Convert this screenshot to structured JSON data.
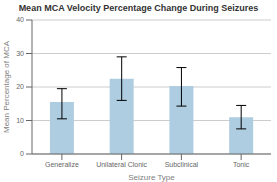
{
  "chart_data": {
    "type": "bar",
    "title": "Mean MCA Velocity Percentage Change During Seizures",
    "xlabel": "Seizure Type",
    "ylabel": "Mean Percentage of MCA",
    "categories": [
      "Generalize",
      "Unilateral Clonic",
      "Subclinical",
      "Tonic"
    ],
    "values": [
      15.5,
      22.5,
      20.3,
      11.0
    ],
    "errors_upper": [
      4.0,
      6.5,
      5.5,
      3.5
    ],
    "errors_lower": [
      5.0,
      6.5,
      6.0,
      3.5
    ],
    "color": "#aecde0",
    "ylim": [
      0,
      40
    ],
    "yticks": [
      0,
      10,
      20,
      30,
      40
    ],
    "grid": true
  }
}
